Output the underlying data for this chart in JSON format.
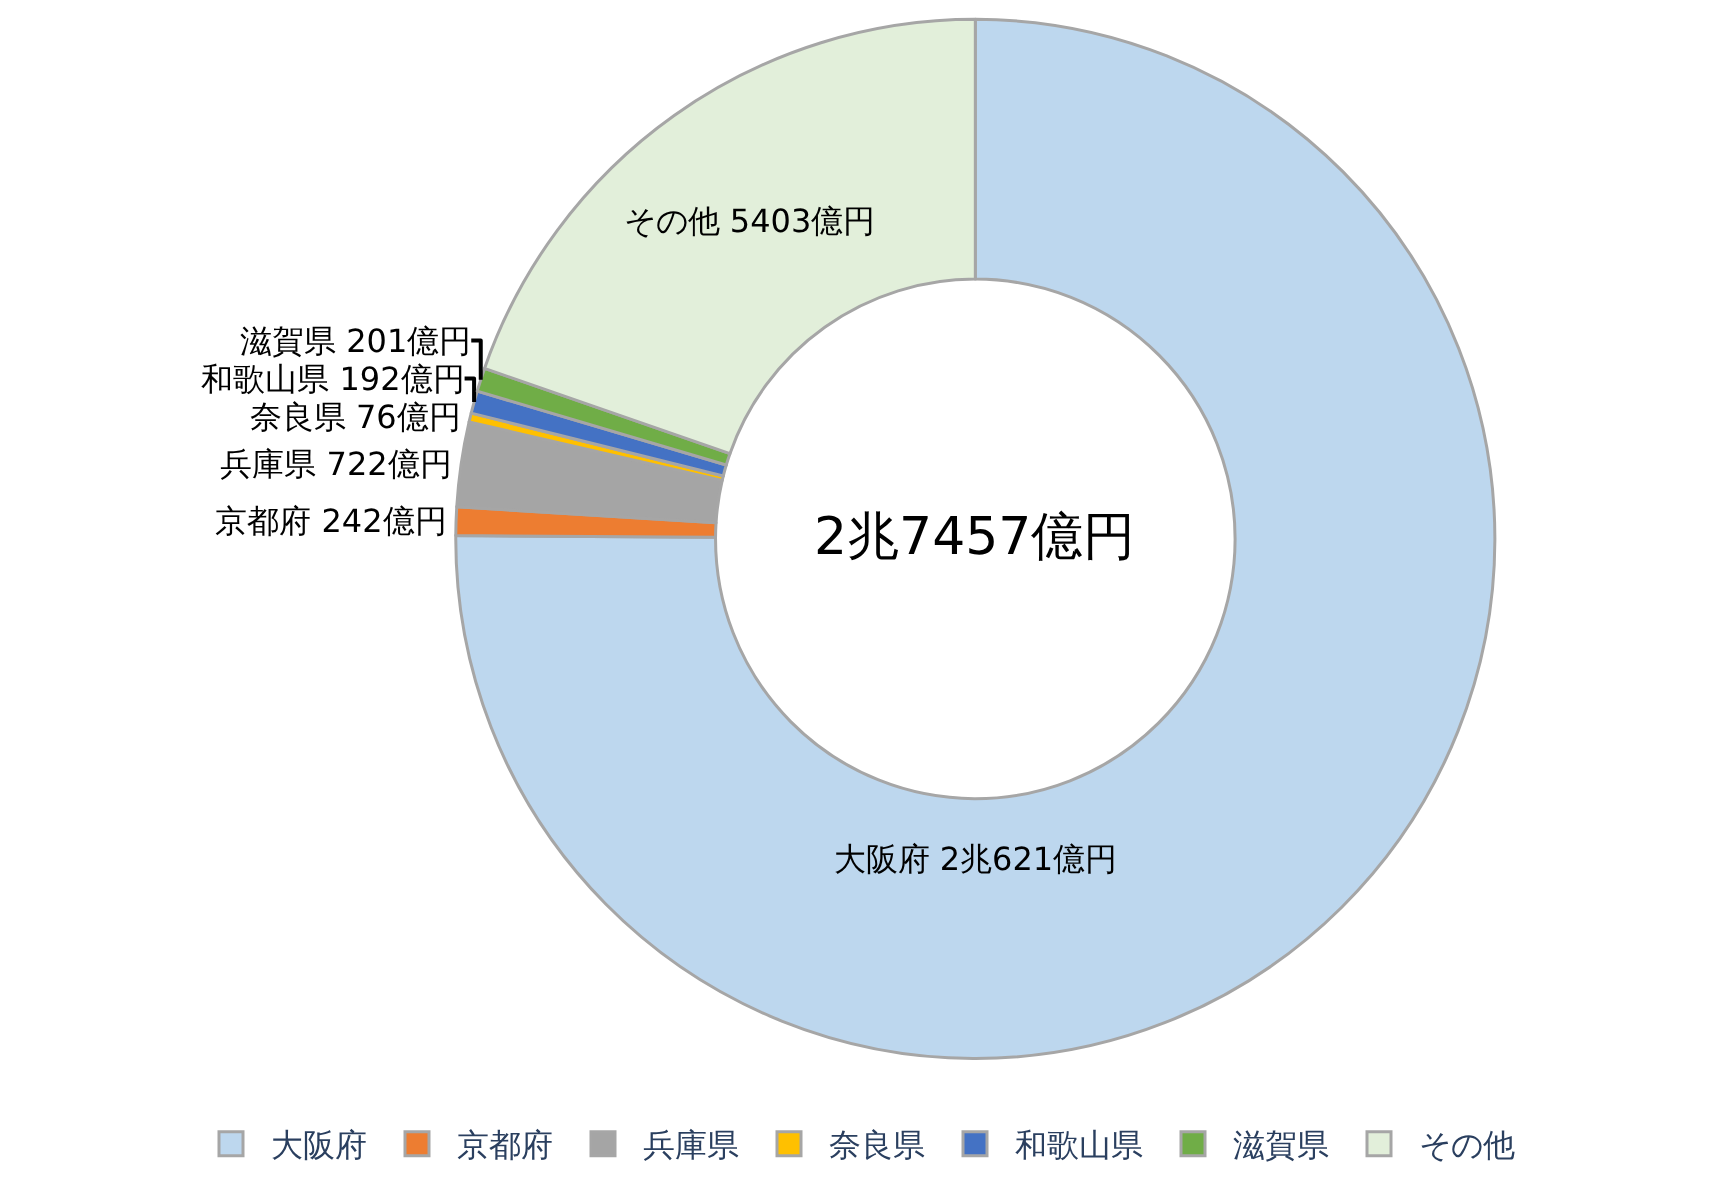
{
  "chart_data": {
    "type": "donut",
    "categories": [
      "大阪府",
      "京都府",
      "兵庫県",
      "奈良県",
      "和歌山県",
      "滋賀県",
      "その他"
    ],
    "values": [
      20621,
      242,
      722,
      76,
      192,
      201,
      5403
    ],
    "colors": [
      "#bdd7ee",
      "#ed7d31",
      "#a5a5a5",
      "#ffc000",
      "#4472c4",
      "#70ad47",
      "#e2efda"
    ],
    "value_labels": [
      "大阪府 2兆621億円",
      "京都府 242億円",
      "兵庫県 722億円",
      "奈良県 76億円",
      "和歌山県 192億円",
      "滋賀県 201億円",
      "その他 5403億円"
    ],
    "annotations": [
      "2兆7457億円"
    ],
    "legend": "bottom"
  }
}
